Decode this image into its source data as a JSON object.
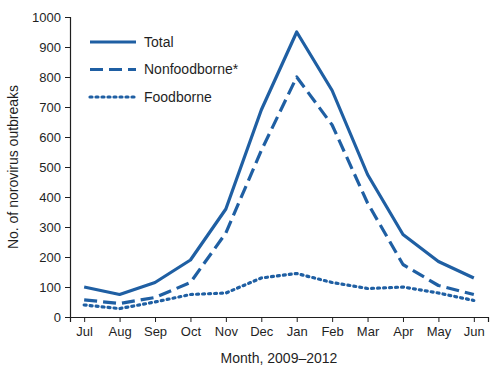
{
  "chart_data": {
    "type": "line",
    "xlabel": "Month, 2009–2012",
    "ylabel": "No. of norovirus outbreaks",
    "categories": [
      "Jul",
      "Aug",
      "Sep",
      "Oct",
      "Nov",
      "Dec",
      "Jan",
      "Feb",
      "Mar",
      "Apr",
      "May",
      "Jun"
    ],
    "series": [
      {
        "name": "Total",
        "color": "#1f5fa3",
        "line_style": "solid",
        "values": [
          100,
          75,
          115,
          190,
          360,
          690,
          950,
          755,
          475,
          275,
          185,
          130
        ]
      },
      {
        "name": "Nonfoodborne*",
        "color": "#1f5fa3",
        "line_style": "dashed",
        "values": [
          57,
          45,
          65,
          115,
          280,
          555,
          800,
          640,
          380,
          175,
          105,
          75
        ]
      },
      {
        "name": "Foodborne",
        "color": "#1f5fa3",
        "line_style": "dotted",
        "values": [
          40,
          28,
          50,
          75,
          80,
          130,
          145,
          115,
          95,
          100,
          80,
          55
        ]
      }
    ],
    "ylim": [
      0,
      1000
    ],
    "yticks": [
      0,
      100,
      200,
      300,
      400,
      500,
      600,
      700,
      800,
      900,
      1000
    ],
    "legend": "upper left",
    "grid": false
  }
}
